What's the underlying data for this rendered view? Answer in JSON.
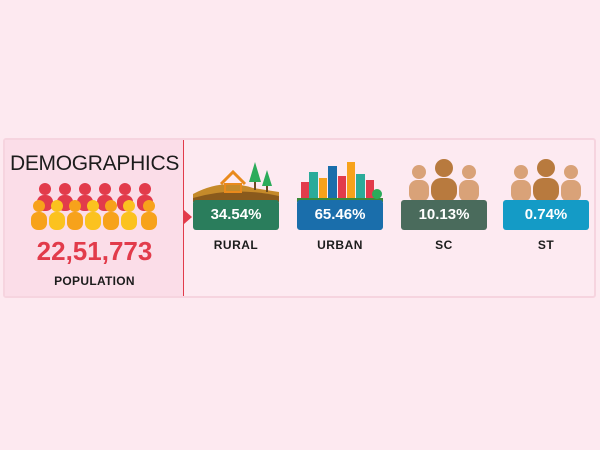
{
  "demographics": {
    "title": "DEMOGRAPHICS",
    "population_value": "22,51,773",
    "population_label": "POPULATION",
    "crowd_icon": "crowd-icon",
    "accent_color": "#e23b4b"
  },
  "stats": [
    {
      "label": "RURAL",
      "value": "34.54%",
      "color": "#2a7d5c",
      "icon": "rural-landscape-icon"
    },
    {
      "label": "URBAN",
      "value": "65.46%",
      "color": "#1a6eab",
      "icon": "city-skyline-icon"
    },
    {
      "label": "SC",
      "value": "10.13%",
      "color": "#4a6b5c",
      "icon": "people-group-icon"
    },
    {
      "label": "ST",
      "value": "0.74%",
      "color": "#149bc6",
      "icon": "people-group-icon"
    }
  ]
}
